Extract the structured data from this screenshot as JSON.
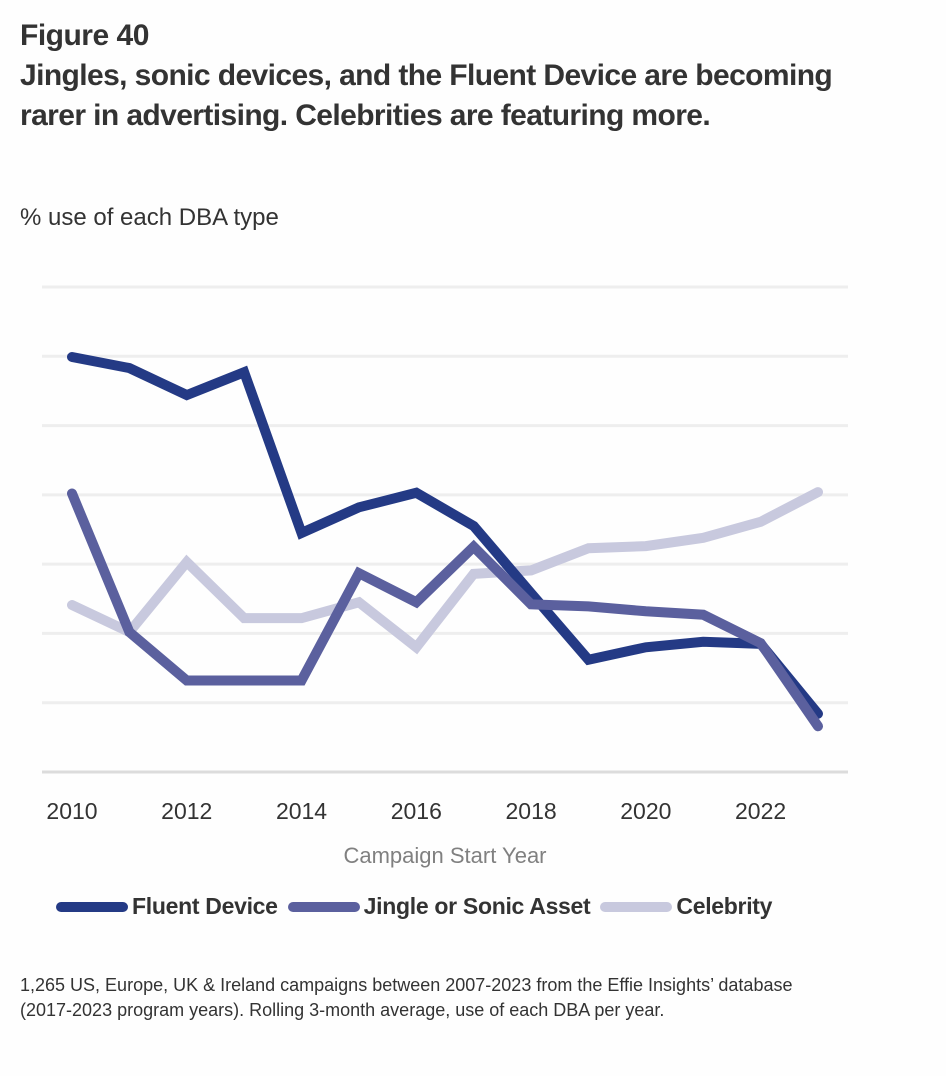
{
  "figure_label": "Figure 40",
  "title": "Jingles, sonic devices, and the Fluent Device are becoming rarer in advertising. Celebrities are featuring more.",
  "subtitle": "% use of each DBA type",
  "footnote": "1,265 US, Europe, UK & Ireland campaigns between 2007-2023 from the Effie Insights’ database  (2017-2023 program years). Rolling 3-month average, use of each DBA per year.",
  "chart_data": {
    "type": "line",
    "title": "Jingles, sonic devices, and the Fluent Device are becoming rarer in advertising. Celebrities are featuring more.",
    "subtitle": "% use of each DBA type",
    "xlabel": "Campaign Start Year",
    "ylabel": "% use of each DBA type",
    "x": [
      2010,
      2011,
      2012,
      2013,
      2014,
      2015,
      2016,
      2017,
      2018,
      2019,
      2020,
      2021,
      2022,
      2023
    ],
    "xticks": [
      "2010",
      "2012",
      "2014",
      "2016",
      "2018",
      "2020",
      "2022"
    ],
    "ylim": [
      0,
      70
    ],
    "yticks_shown": false,
    "grid": true,
    "legend_position": "bottom",
    "note": "Y-axis has no labels; values estimated on a nominal scale of 10 units per gridline.",
    "series": [
      {
        "name": "Fluent Device",
        "color": "#243a85",
        "values": [
          59.9,
          58.3,
          54.4,
          57.7,
          34.5,
          38.2,
          40.3,
          35.5,
          25.8,
          16.2,
          18.0,
          18.8,
          18.5,
          8.4
        ]
      },
      {
        "name": "Jingle or Sonic Asset",
        "color": "#5b609e",
        "values": [
          40.2,
          20.2,
          13.2,
          13.2,
          13.2,
          28.7,
          24.5,
          32.5,
          24.2,
          23.9,
          23.2,
          22.7,
          18.6,
          6.6
        ]
      },
      {
        "name": "Celebrity",
        "color": "#c8c9de",
        "values": [
          24.1,
          20.2,
          30.3,
          22.2,
          22.2,
          24.5,
          18.0,
          28.6,
          29.1,
          32.3,
          32.6,
          33.8,
          36.1,
          40.4
        ]
      }
    ]
  }
}
